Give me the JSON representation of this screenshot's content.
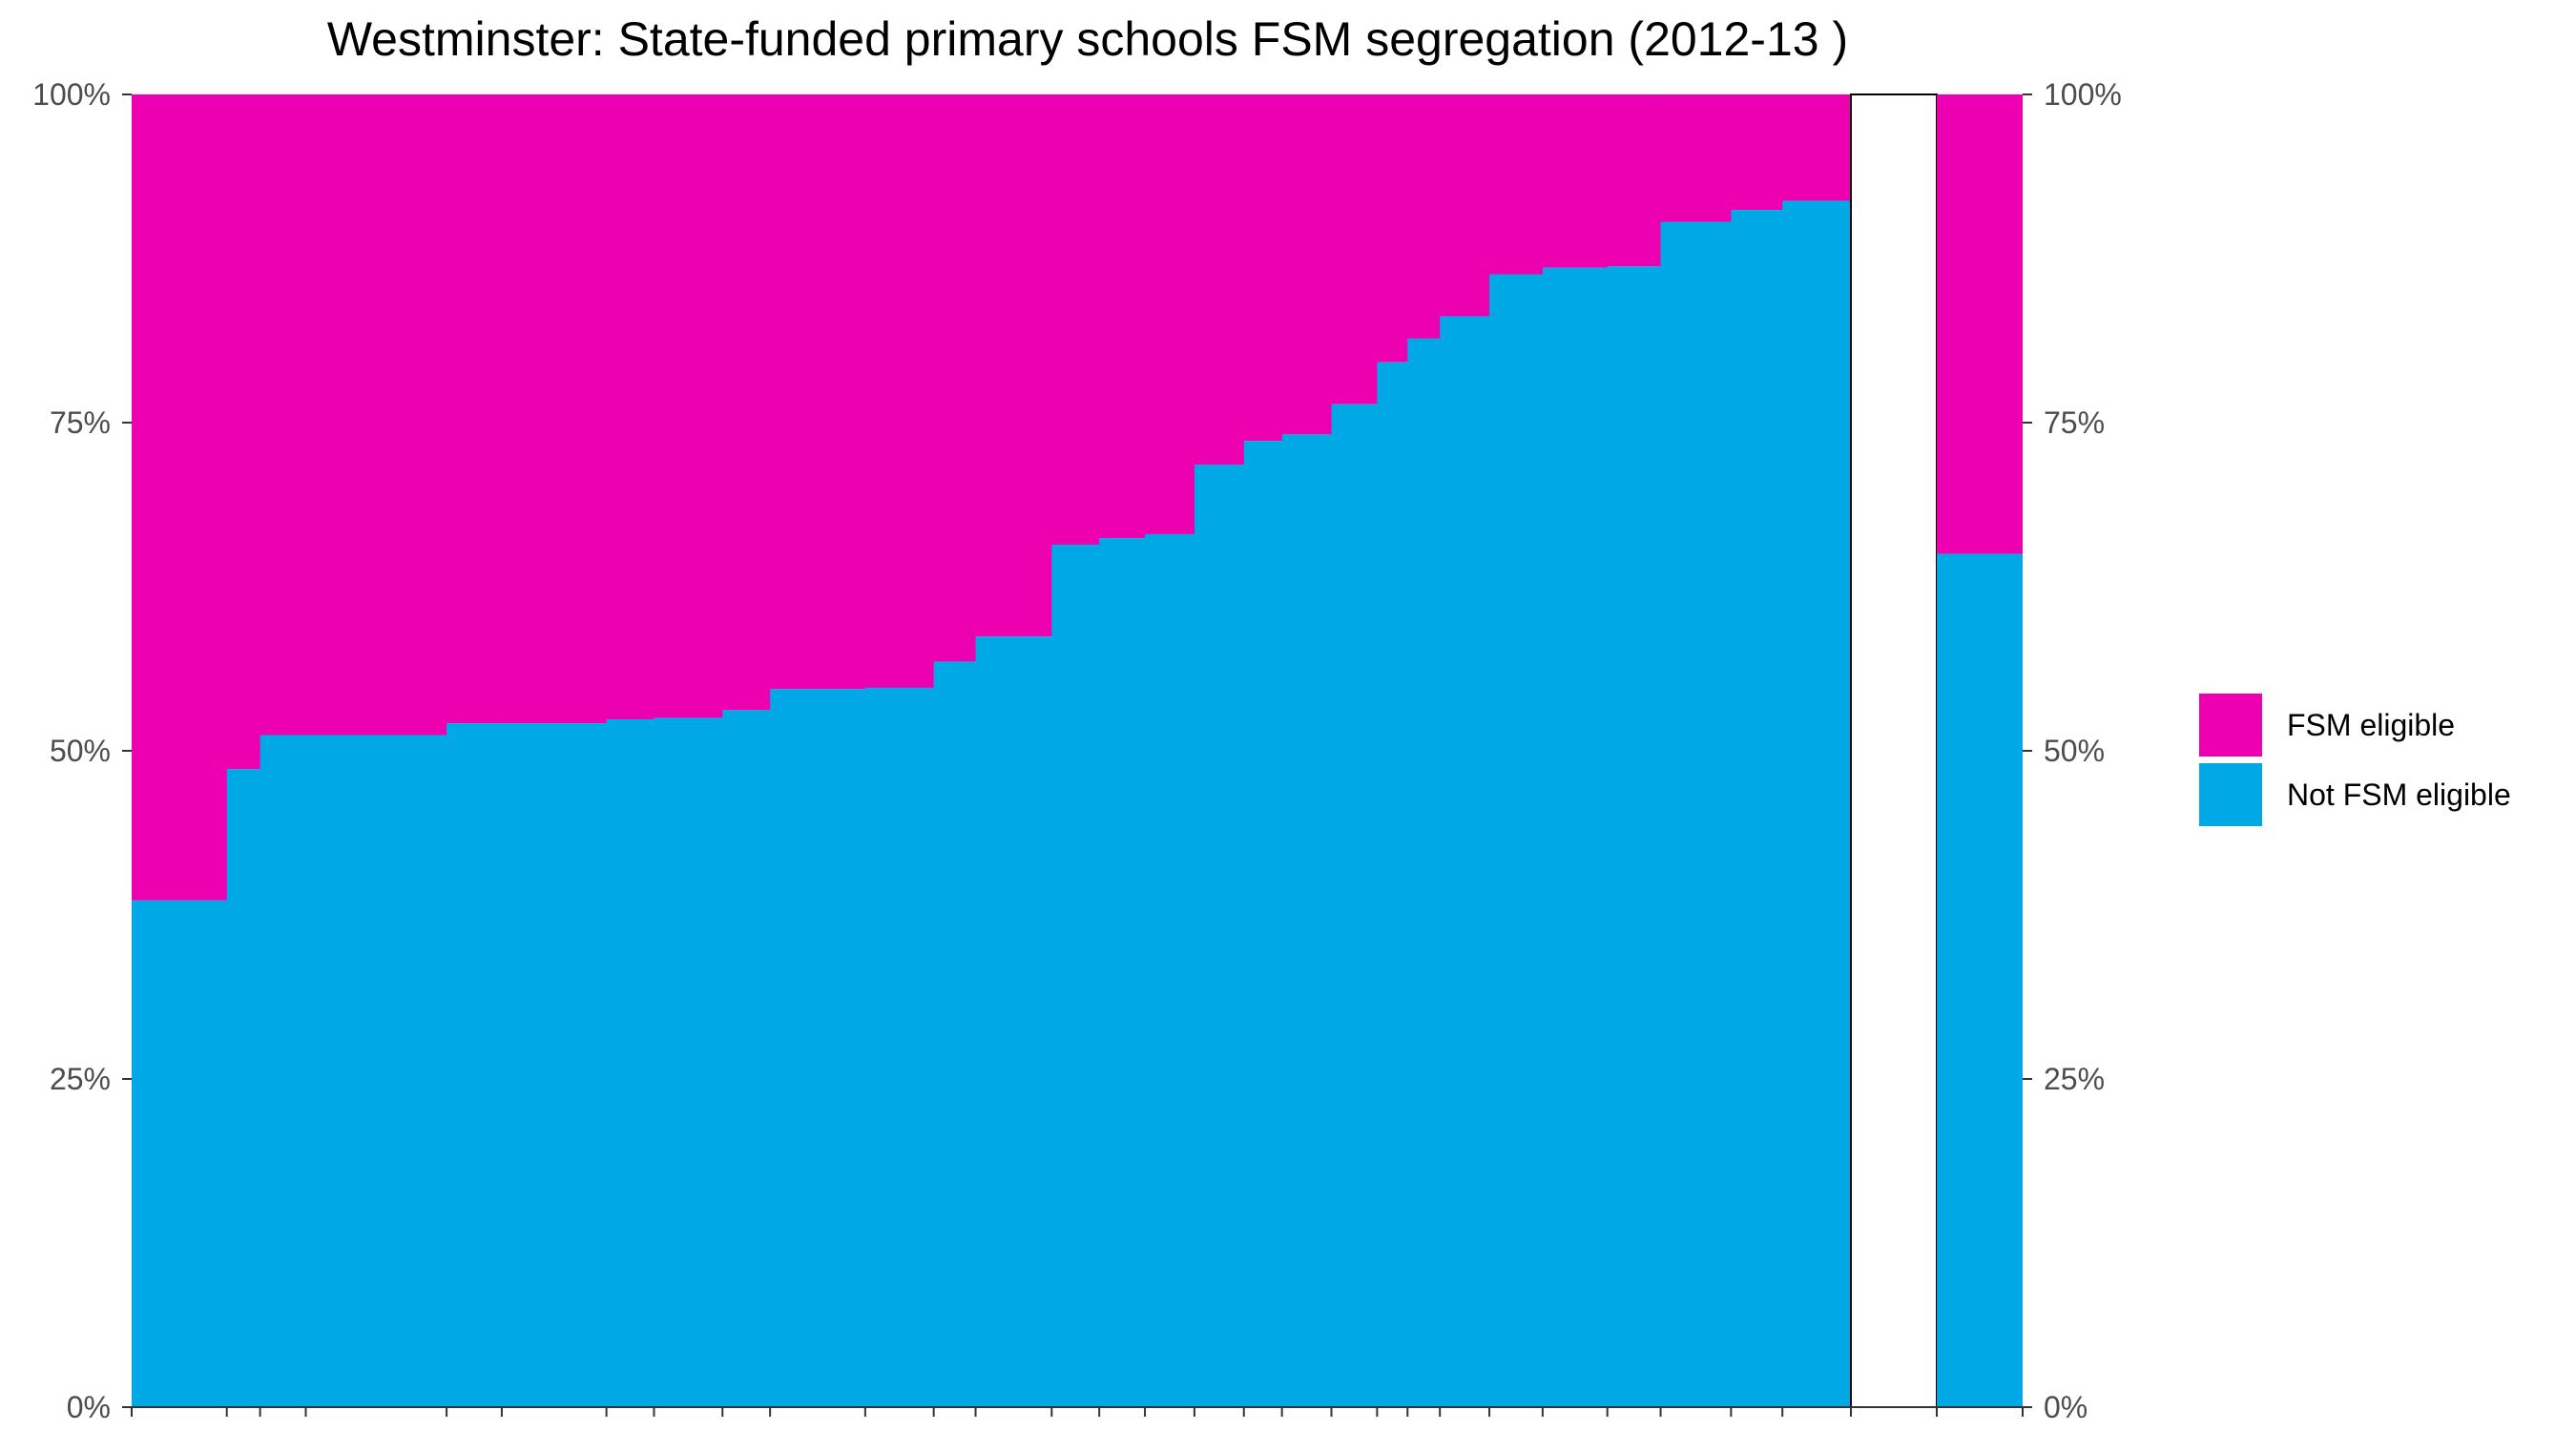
{
  "chart_data": {
    "type": "bar",
    "subtype": "stacked-percent-mosaic",
    "title": "Westminster: State-funded primary schools FSM segregation (2012-13 )",
    "xlabel": "",
    "ylabel": "",
    "ylim": [
      0,
      100
    ],
    "y_ticks": [
      "0%",
      "25%",
      "50%",
      "75%",
      "100%"
    ],
    "y_axes": [
      "left",
      "right"
    ],
    "grid": false,
    "legend_position": "right",
    "series": [
      {
        "name": "FSM eligible",
        "color": "#EC00B0"
      },
      {
        "name": "Not FSM eligible",
        "color": "#00A8E6"
      }
    ],
    "schools": {
      "widths": [
        100,
        35,
        48,
        148,
        58,
        110,
        50,
        72,
        50,
        100,
        72,
        44,
        80,
        50,
        48,
        52,
        52,
        40,
        52,
        48,
        32,
        34,
        52,
        56,
        68,
        56,
        74
      ],
      "not_fsm_pct": [
        38.6,
        48.6,
        51.2,
        51.2,
        52.1,
        52.1,
        52.4,
        52.5,
        53.1,
        54.7,
        54.8,
        56.8,
        58.7,
        65.7,
        66.2,
        66.5,
        71.8,
        73.6,
        74.1,
        76.4,
        79.6,
        81.4,
        83.1,
        86.3,
        86.8,
        86.9,
        90.3
      ]
    },
    "extra_schools": {
      "widths": [
        54,
        72
      ],
      "not_fsm_pct": [
        91.2,
        91.9
      ]
    },
    "overall": {
      "not_fsm_pct": 65.0
    }
  }
}
